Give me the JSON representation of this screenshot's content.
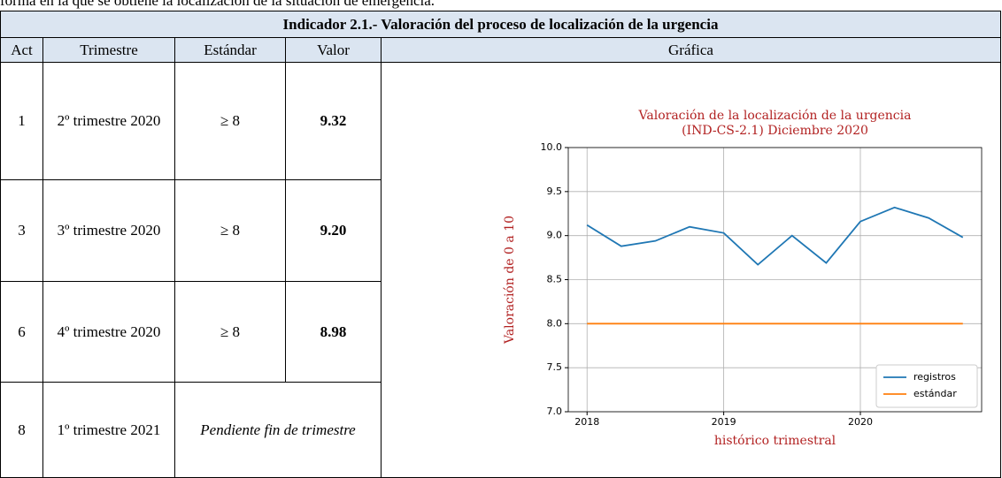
{
  "intro_text": "forma en la que se obtiene la localización de la situación de emergencia.",
  "table": {
    "title": "Indicador 2.1.- Valoración del proceso de localización de la urgencia",
    "headers": [
      "Act",
      "Trimestre",
      "Estándar",
      "Valor",
      "Gráfica"
    ],
    "rows": [
      [
        "1",
        "2º trimestre 2020",
        "≥ 8",
        "9.32"
      ],
      [
        "3",
        "3º trimestre 2020",
        "≥ 8",
        "9.20"
      ],
      [
        "6",
        "4º trimestre 2020",
        "≥ 8",
        "8.98"
      ],
      [
        "8",
        "1º trimestre 2021",
        "Pendiente fin de trimestre"
      ]
    ]
  },
  "chart_data": {
    "type": "line",
    "title": [
      "Valoración de la localización de la urgencia",
      "(IND-CS-2.1) Diciembre 2020"
    ],
    "x_label": "histórico trimestral",
    "y_label": "Valoración de 0 a 10",
    "x": [
      2018,
      2018.25,
      2018.5,
      2018.75,
      2019,
      2019.25,
      2019.5,
      2019.75,
      2020,
      2020.25,
      2020.5,
      2020.75
    ],
    "series": [
      {
        "name": "registros",
        "color": "#1f77b4",
        "values": [
          9.12,
          8.88,
          8.94,
          9.1,
          9.03,
          8.67,
          9.0,
          8.69,
          9.16,
          9.32,
          9.2,
          8.98
        ]
      },
      {
        "name": "estándar",
        "color": "#ff7f0e",
        "values": [
          8,
          8,
          8,
          8,
          8,
          8,
          8,
          8,
          8,
          8,
          8,
          8
        ]
      }
    ],
    "xlim": [
      2017.8625,
      2020.8875
    ],
    "xticks": [
      2018,
      2019,
      2020
    ],
    "ylim": [
      7,
      10
    ],
    "yticks": [
      {
        "value": 7,
        "label": "7.0"
      },
      7.5,
      {
        "value": 8,
        "label": "8.0"
      },
      8.5,
      {
        "value": 9,
        "label": "9.0"
      },
      9.5,
      {
        "value": 10,
        "label": "10.0"
      }
    ],
    "grid": true,
    "legend": "lower right",
    "title_color": "#b22222"
  }
}
